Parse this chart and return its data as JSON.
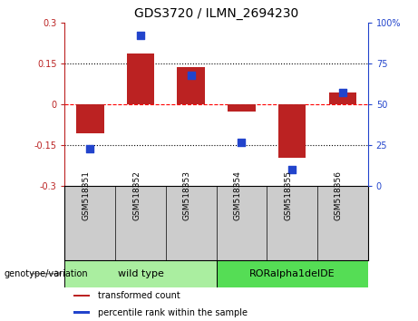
{
  "title": "GDS3720 / ILMN_2694230",
  "samples": [
    "GSM518351",
    "GSM518352",
    "GSM518353",
    "GSM518354",
    "GSM518355",
    "GSM518356"
  ],
  "bar_values": [
    -0.105,
    0.185,
    0.135,
    -0.028,
    -0.195,
    0.045
  ],
  "scatter_values": [
    23,
    92,
    68,
    27,
    10,
    57
  ],
  "bar_color": "#BB2222",
  "scatter_color": "#2244CC",
  "ylim_left": [
    -0.3,
    0.3
  ],
  "ylim_right": [
    0,
    100
  ],
  "yticks_left": [
    -0.3,
    -0.15,
    0,
    0.15,
    0.3
  ],
  "yticks_right": [
    0,
    25,
    50,
    75,
    100
  ],
  "hlines": [
    0.15,
    0,
    -0.15
  ],
  "hline_colors": [
    "black",
    "red",
    "black"
  ],
  "hline_styles": [
    "dotted",
    "dashed",
    "dotted"
  ],
  "groups": [
    {
      "label": "wild type",
      "samples": [
        0,
        1,
        2
      ],
      "color": "#AAEEA0"
    },
    {
      "label": "RORalpha1delDE",
      "samples": [
        3,
        4,
        5
      ],
      "color": "#55DD55"
    }
  ],
  "group_label": "genotype/variation",
  "legend_items": [
    {
      "label": "transformed count",
      "color": "#BB2222"
    },
    {
      "label": "percentile rank within the sample",
      "color": "#2244CC"
    }
  ],
  "bar_width": 0.55,
  "scatter_marker": "s",
  "scatter_size": 30,
  "background_color": "#ffffff",
  "plot_bg_color": "#ffffff",
  "tick_label_fontsize": 7,
  "title_fontsize": 10,
  "sample_bg_color": "#CCCCCC"
}
